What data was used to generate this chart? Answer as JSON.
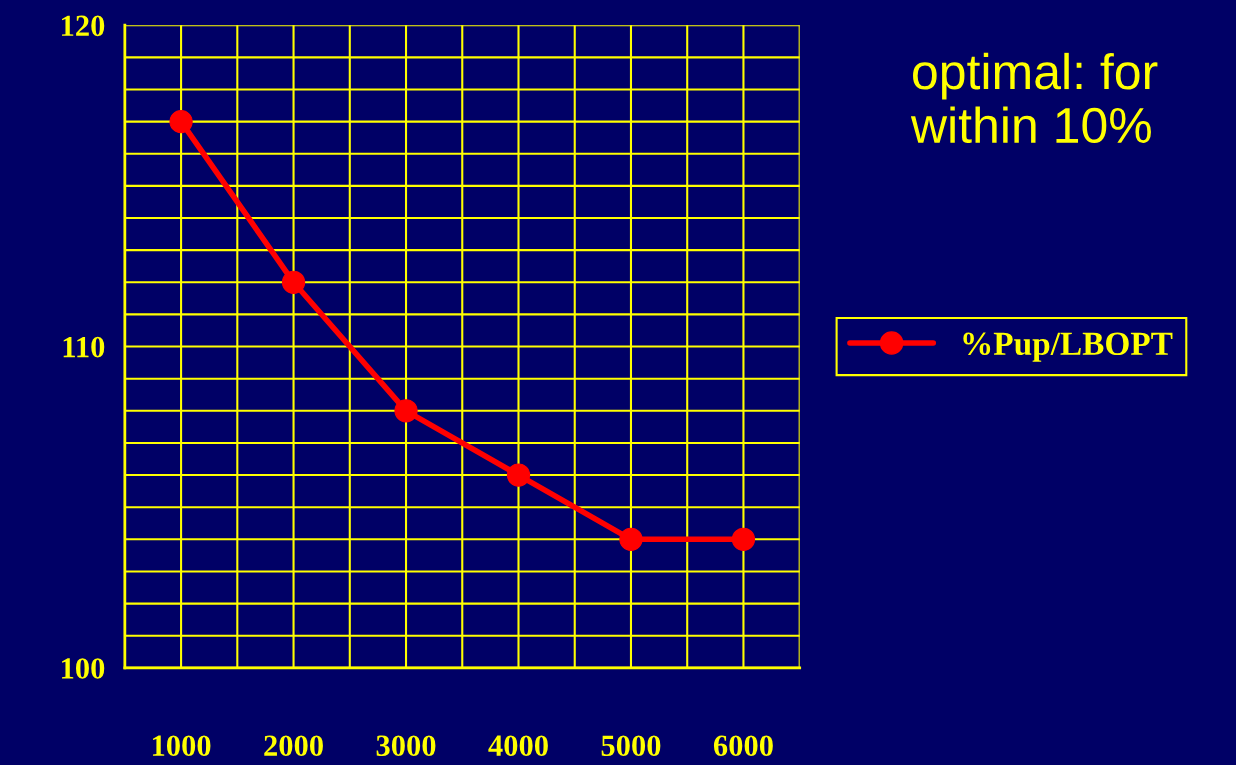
{
  "chart_data": {
    "type": "line",
    "categories": [
      "1000",
      "2000",
      "3000",
      "4000",
      "5000",
      "6000"
    ],
    "series": [
      {
        "name": "%Pup/LBOPT",
        "color": "#ff0000",
        "values": [
          117,
          112,
          108,
          106,
          104,
          104
        ]
      }
    ],
    "ylim": [
      100,
      120
    ],
    "yticks": [
      100,
      {
        "value": 101,
        "label": null
      },
      {
        "value": 102,
        "label": null
      },
      {
        "value": 103,
        "label": null
      },
      {
        "value": 104,
        "label": null
      },
      {
        "value": 105,
        "label": null
      },
      {
        "value": 106,
        "label": null
      },
      {
        "value": 107,
        "label": null
      },
      {
        "value": 108,
        "label": null
      },
      {
        "value": 109,
        "label": null
      },
      110,
      {
        "value": 111,
        "label": null
      },
      {
        "value": 112,
        "label": null
      },
      {
        "value": 113,
        "label": null
      },
      {
        "value": 114,
        "label": null
      },
      {
        "value": 115,
        "label": null
      },
      {
        "value": 116,
        "label": null
      },
      {
        "value": 117,
        "label": null
      },
      {
        "value": 118,
        "label": null
      },
      {
        "value": 119,
        "label": null
      },
      120
    ],
    "grid": true,
    "legend": "right",
    "marker": "circle",
    "line_style": "solid",
    "annotations": [
      "optimal: for",
      "within 10%"
    ]
  }
}
